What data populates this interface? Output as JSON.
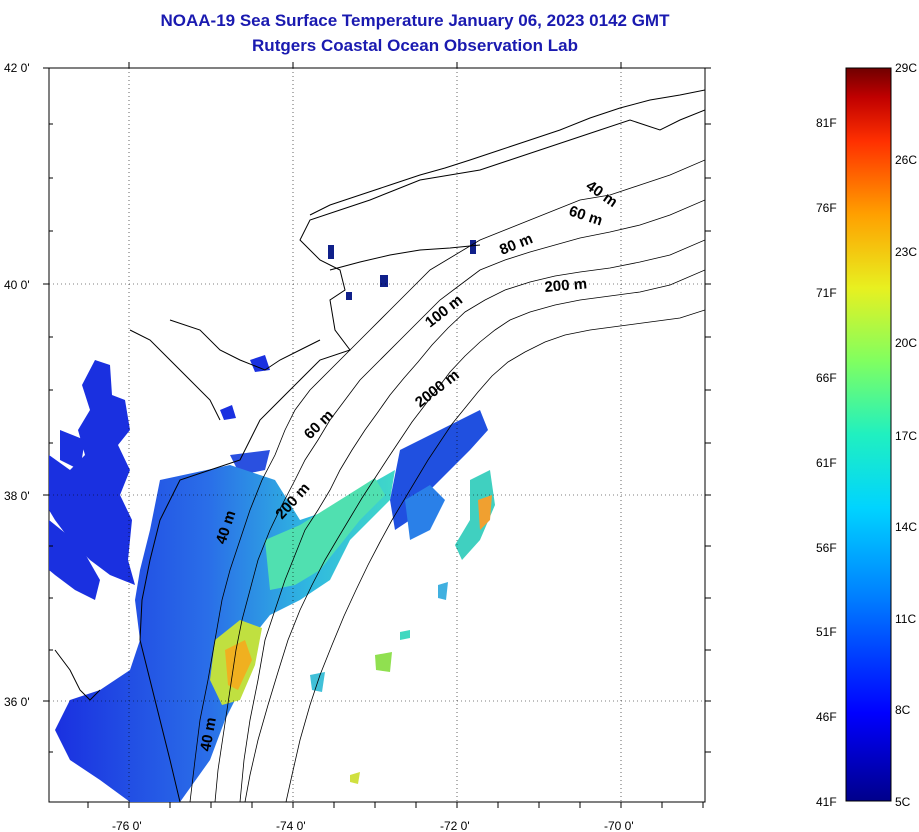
{
  "title": "NOAA-19 Sea Surface Temperature January 06, 2023 0142 GMT",
  "subtitle": "Rutgers Coastal Ocean Observation Lab",
  "map": {
    "lat_labels": [
      "42 0'",
      "40 0'",
      "38 0'",
      "36 0'"
    ],
    "lon_labels": [
      "-76 0'",
      "-74 0'",
      "-72 0'",
      "-70 0'"
    ],
    "contour_labels": [
      "40 m",
      "60 m",
      "80 m",
      "200 m",
      "100 m",
      "2000 m",
      "60 m",
      "200 m",
      "40 m",
      "40 m"
    ],
    "grid": true
  },
  "colorbar": {
    "fahrenheit_labels": [
      "81F",
      "76F",
      "71F",
      "66F",
      "61F",
      "56F",
      "51F",
      "46F",
      "41F"
    ],
    "celsius_labels": [
      "29C",
      "26C",
      "23C",
      "20C",
      "17C",
      "14C",
      "11C",
      "8C",
      "5C"
    ],
    "colors": [
      "#00008b",
      "#0000ff",
      "#0080ff",
      "#00d4ff",
      "#20f0c0",
      "#80ff60",
      "#e8f020",
      "#ffa000",
      "#ff3000",
      "#c00000",
      "#700000"
    ]
  },
  "sst_colors": {
    "cold_bay": "#1a30e0",
    "shelf": "#2a70e8",
    "mid": "#30c0e0",
    "warm": "#a0e040",
    "hot": "#f0a020"
  }
}
